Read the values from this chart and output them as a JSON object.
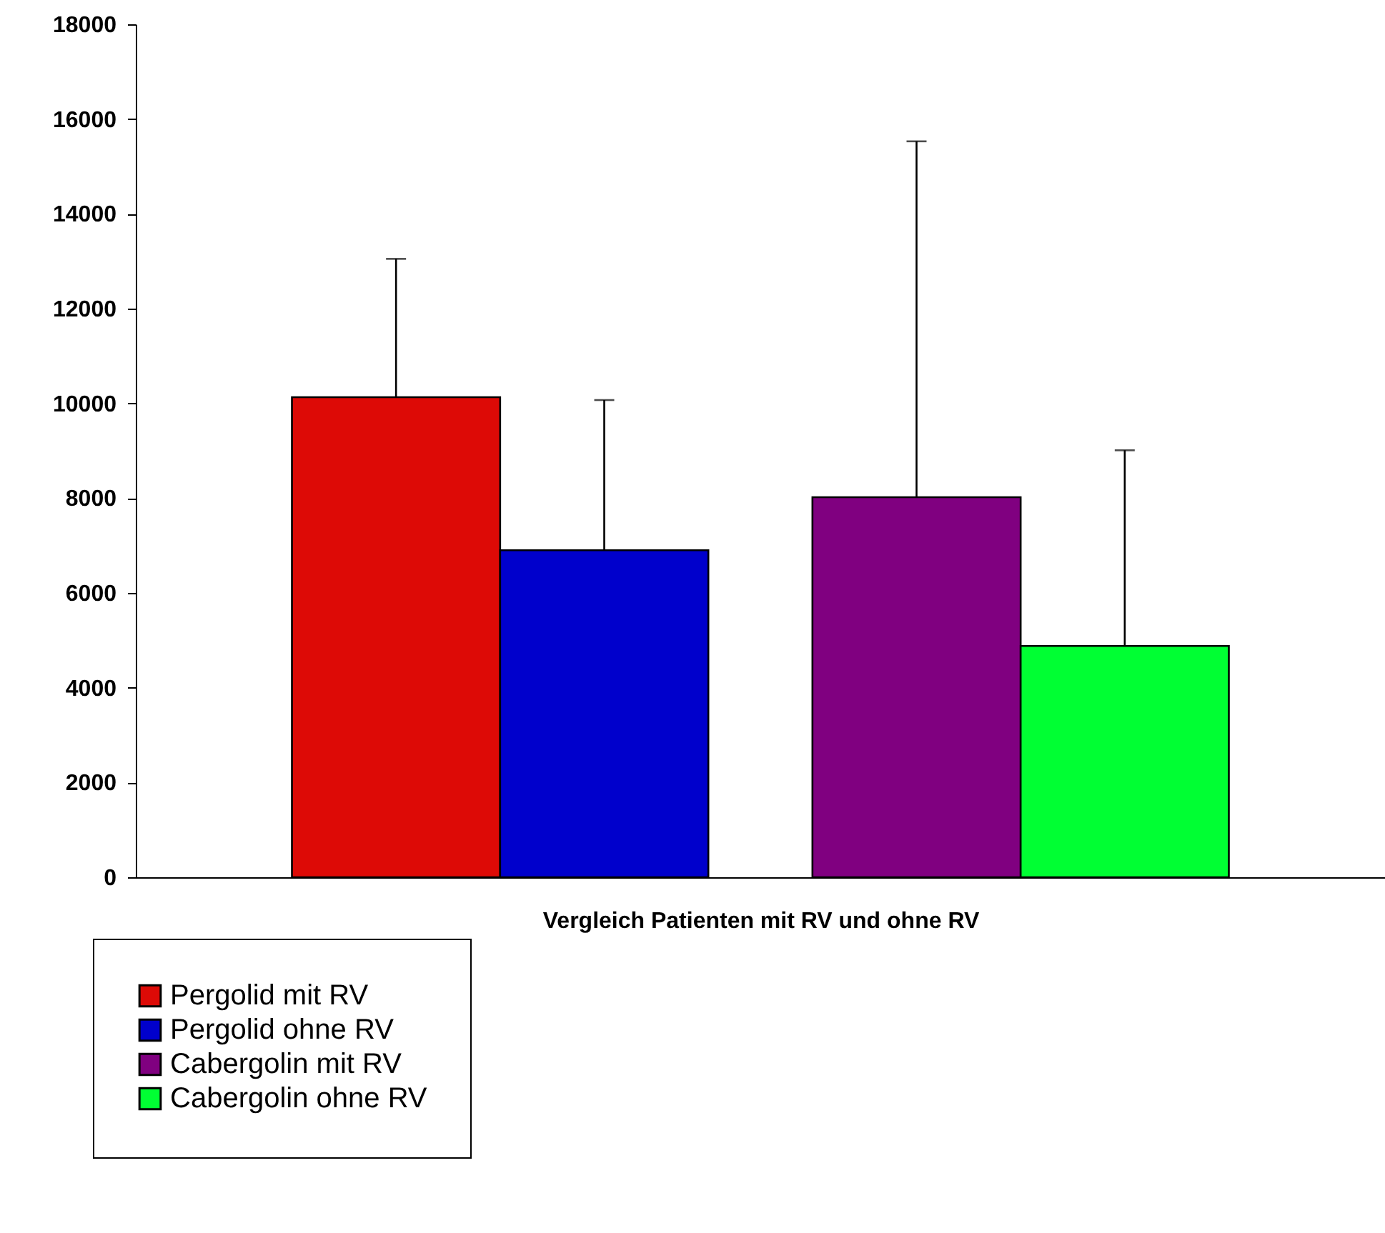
{
  "chart_data": {
    "type": "bar",
    "xlabel": "Vergleich Patienten mit RV und ohne RV",
    "categories": [
      null,
      null
    ],
    "series": [
      {
        "name": "Pergolid mit RV",
        "color": "#dd0a06",
        "values": [
          10130,
          null
        ],
        "errors": [
          [
            10130,
            13050
          ],
          null
        ]
      },
      {
        "name": "Pergolid ohne RV",
        "color": "#0000cc",
        "values": [
          6900,
          null
        ],
        "errors": [
          [
            6900,
            10070
          ],
          null
        ]
      },
      {
        "name": "Cabergolin mit RV",
        "color": "#800080",
        "values": [
          null,
          8020
        ],
        "errors": [
          null,
          [
            8020,
            15530
          ]
        ]
      },
      {
        "name": "Cabergolin ohne RV",
        "color": "#00ff33",
        "values": [
          null,
          4880
        ],
        "errors": [
          null,
          [
            4880,
            9010
          ]
        ]
      }
    ],
    "ylim": [
      0,
      18000
    ],
    "yticks": [
      0,
      2000,
      4000,
      6000,
      8000,
      10000,
      12000,
      14000,
      16000,
      18000
    ],
    "grid": false,
    "legend": "bottom left"
  }
}
